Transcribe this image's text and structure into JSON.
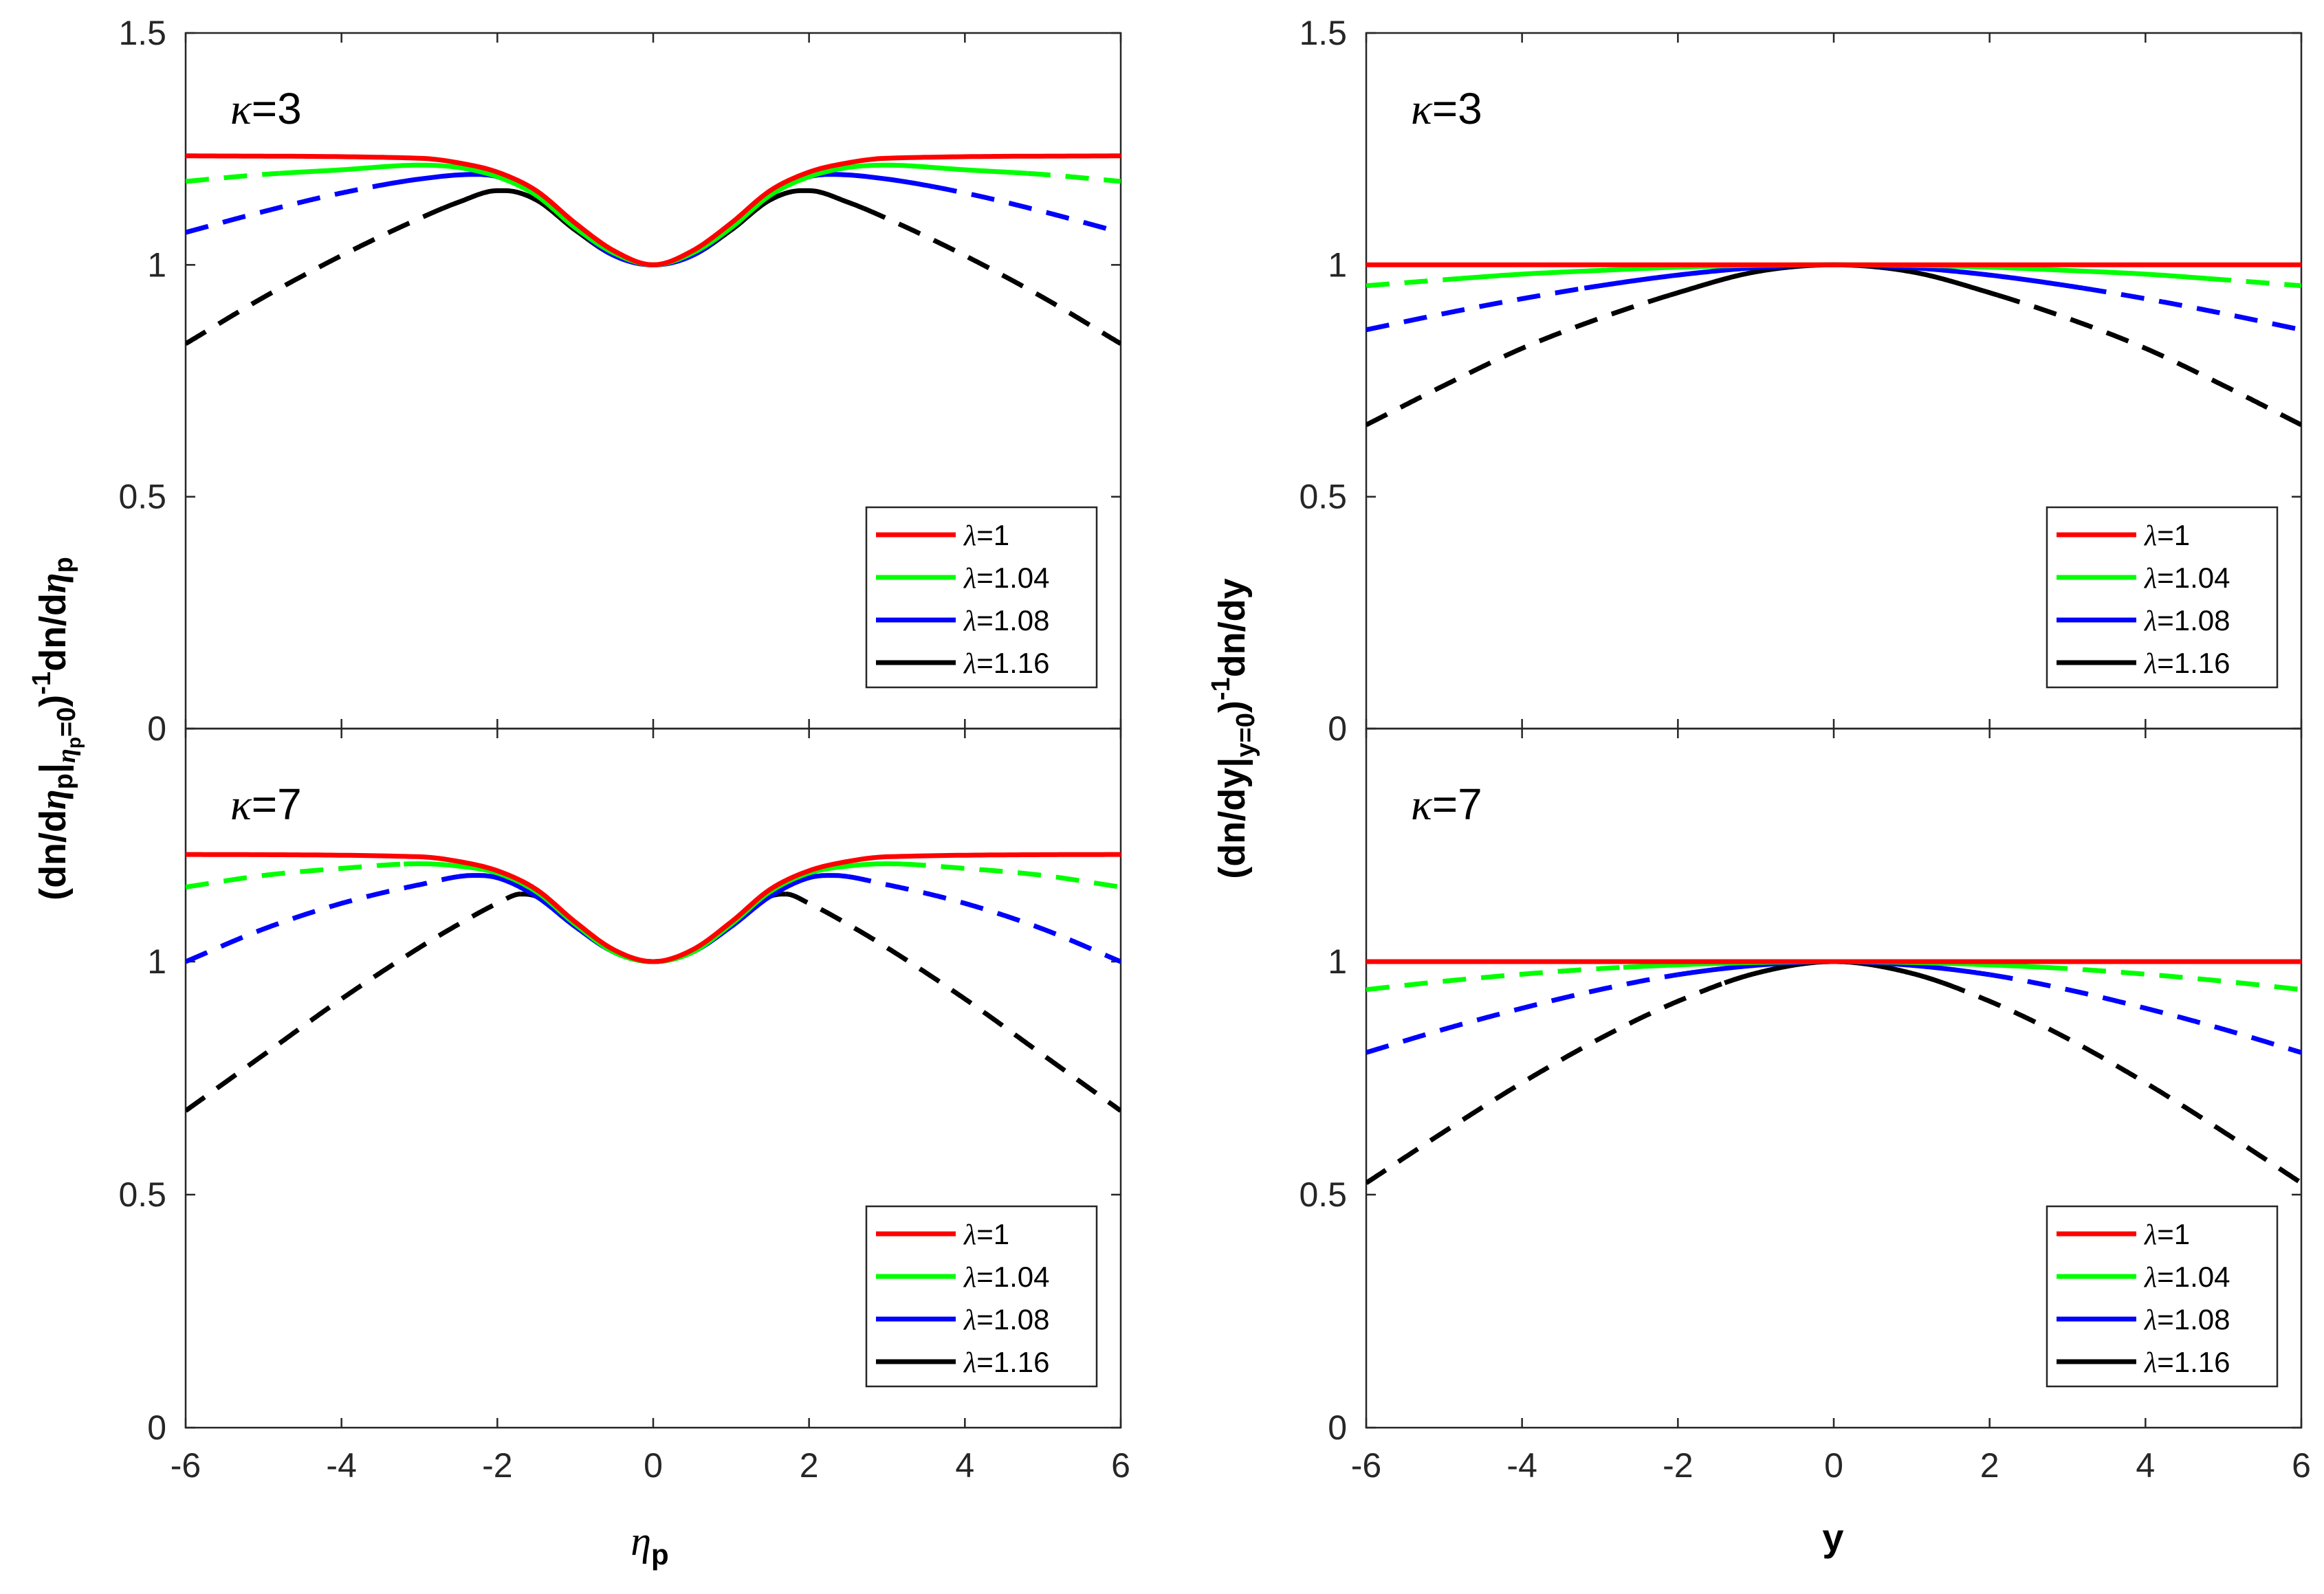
{
  "figure": {
    "left_column": {
      "ylabel": "(dn/dηp|ηp=0)-1dn/dηp",
      "ylabel_parts": {
        "open": "(dn/d",
        "eta": "η",
        "p": "p",
        "bar": "|",
        "sub_eta": "η",
        "sub_p": "p",
        "sub_eq": "=0",
        "close": ")",
        "sup": "-1",
        "rest": "dn/d",
        "eta2": "η",
        "p2": "p"
      },
      "xlabel_symbol": "η",
      "xlabel_sub": "p"
    },
    "right_column": {
      "ylabel": "(dn/dy|y=0)-1dn/dy",
      "ylabel_parts": {
        "open": "(dn/dy|",
        "sub": "y=0",
        "close": ")",
        "sup": "-1",
        "rest": "dn/dy"
      },
      "xlabel": "y"
    }
  },
  "colors": {
    "lambda_1": "#ff0000",
    "lambda_1.04": "#00ff00",
    "lambda_1.08": "#0000ff",
    "lambda_1.16": "#000000"
  },
  "chart_data": [
    {
      "id": "top-left",
      "type": "line",
      "annotation": "κ=3",
      "xlim": [
        -6,
        6
      ],
      "ylim": [
        0,
        1.5
      ],
      "xticks": [
        "-6",
        "-4",
        "-2",
        "0",
        "2",
        "4",
        "6"
      ],
      "yticks": [
        "0",
        "0.5",
        "1",
        "1.5"
      ],
      "legend_position": "bottom-right",
      "series": [
        {
          "name": "λ=1",
          "color": "#ff0000",
          "solid_range": [
            -6,
            6
          ],
          "x": [
            -6,
            -3,
            -2.5,
            -2,
            -1.5,
            -1,
            -0.5,
            0,
            0.5,
            1,
            1.5,
            2,
            2.5,
            3,
            6
          ],
          "y": [
            1.235,
            1.23,
            1.22,
            1.2,
            1.16,
            1.09,
            1.03,
            1.0,
            1.03,
            1.09,
            1.16,
            1.2,
            1.22,
            1.23,
            1.235
          ]
        },
        {
          "name": "λ=1.04",
          "color": "#00ff00",
          "solid_range": [
            -4.8,
            4.8
          ],
          "x": [
            -6,
            -5,
            -4,
            -3,
            -2.5,
            -2,
            -1.5,
            -1,
            -0.5,
            0,
            0.5,
            1,
            1.5,
            2,
            2.5,
            3,
            4,
            5,
            6
          ],
          "y": [
            1.18,
            1.195,
            1.205,
            1.215,
            1.21,
            1.19,
            1.15,
            1.08,
            1.025,
            1.0,
            1.025,
            1.08,
            1.15,
            1.19,
            1.21,
            1.215,
            1.205,
            1.195,
            1.18
          ]
        },
        {
          "name": "λ=1.08",
          "color": "#0000ff",
          "solid_range": [
            -3.6,
            3.6
          ],
          "x": [
            -6,
            -5,
            -4,
            -3,
            -2.3,
            -2,
            -1.5,
            -1,
            -0.5,
            0,
            0.5,
            1,
            1.5,
            2,
            2.3,
            3,
            4,
            5,
            6
          ],
          "y": [
            1.07,
            1.115,
            1.155,
            1.185,
            1.195,
            1.19,
            1.15,
            1.08,
            1.02,
            1.0,
            1.02,
            1.08,
            1.15,
            1.19,
            1.195,
            1.185,
            1.155,
            1.115,
            1.07
          ]
        },
        {
          "name": "λ=1.16",
          "color": "#000000",
          "solid_range": [
            -2.7,
            2.7
          ],
          "x": [
            -6,
            -5,
            -4,
            -3,
            -2.5,
            -2,
            -1.9,
            -1.5,
            -1,
            -0.5,
            0,
            0.5,
            1,
            1.5,
            1.9,
            2,
            2.5,
            3,
            4,
            5,
            6
          ],
          "y": [
            0.83,
            0.93,
            1.02,
            1.1,
            1.135,
            1.16,
            1.16,
            1.14,
            1.075,
            1.02,
            1.0,
            1.02,
            1.075,
            1.14,
            1.16,
            1.16,
            1.135,
            1.1,
            1.02,
            0.93,
            0.83
          ]
        }
      ]
    },
    {
      "id": "top-right",
      "type": "line",
      "annotation": "κ=3",
      "xlim": [
        -6,
        6
      ],
      "ylim": [
        0,
        1.5
      ],
      "xticks": [
        "-6",
        "-4",
        "-2",
        "0",
        "2",
        "4",
        "6"
      ],
      "yticks": [
        "0",
        "0.5",
        "1",
        "1.5"
      ],
      "legend_position": "bottom-right",
      "series": [
        {
          "name": "λ=1",
          "color": "#ff0000",
          "solid_range": [
            -6,
            6
          ],
          "x": [
            -6,
            6
          ],
          "y": [
            1.0,
            1.0
          ]
        },
        {
          "name": "λ=1.04",
          "color": "#00ff00",
          "solid_range": [
            -4.8,
            4.8
          ],
          "x": [
            -6,
            -5,
            -4,
            -3,
            -2,
            -1,
            0,
            1,
            2,
            3,
            4,
            5,
            6
          ],
          "y": [
            0.955,
            0.968,
            0.98,
            0.988,
            0.995,
            0.999,
            1.0,
            0.999,
            0.995,
            0.988,
            0.98,
            0.968,
            0.955
          ]
        },
        {
          "name": "λ=1.08",
          "color": "#0000ff",
          "solid_range": [
            -3.2,
            3.2
          ],
          "x": [
            -6,
            -5,
            -4,
            -3,
            -2,
            -1,
            0,
            1,
            2,
            3,
            4,
            5,
            6
          ],
          "y": [
            0.86,
            0.895,
            0.927,
            0.955,
            0.978,
            0.994,
            1.0,
            0.994,
            0.978,
            0.955,
            0.927,
            0.895,
            0.86
          ]
        },
        {
          "name": "λ=1.16",
          "color": "#000000",
          "solid_range": [
            -2.1,
            2.1
          ],
          "x": [
            -6,
            -5,
            -4,
            -3,
            -2,
            -1,
            0,
            1,
            2,
            3,
            4,
            5,
            6
          ],
          "y": [
            0.655,
            0.74,
            0.82,
            0.885,
            0.94,
            0.985,
            1.0,
            0.985,
            0.94,
            0.885,
            0.82,
            0.74,
            0.655
          ]
        }
      ]
    },
    {
      "id": "bottom-left",
      "type": "line",
      "annotation": "κ=7",
      "xlim": [
        -6,
        6
      ],
      "ylim": [
        0,
        1.5
      ],
      "xticks": [
        "-6",
        "-4",
        "-2",
        "0",
        "2",
        "4",
        "6"
      ],
      "yticks": [
        "0",
        "0.5",
        "1",
        "1.5"
      ],
      "legend_position": "bottom-right",
      "series": [
        {
          "name": "λ=1",
          "color": "#ff0000",
          "solid_range": [
            -6,
            6
          ],
          "x": [
            -6,
            -3,
            -2.5,
            -2,
            -1.5,
            -1,
            -0.5,
            0,
            0.5,
            1,
            1.5,
            2,
            2.5,
            3,
            6
          ],
          "y": [
            1.23,
            1.225,
            1.215,
            1.195,
            1.155,
            1.085,
            1.025,
            1.0,
            1.025,
            1.085,
            1.155,
            1.195,
            1.215,
            1.225,
            1.23
          ]
        },
        {
          "name": "λ=1.04",
          "color": "#00ff00",
          "solid_range": [
            -3.2,
            3.2
          ],
          "x": [
            -6,
            -5,
            -4,
            -3,
            -2.5,
            -2,
            -1.5,
            -1,
            -0.5,
            0,
            0.5,
            1,
            1.5,
            2,
            2.5,
            3,
            4,
            5,
            6
          ],
          "y": [
            1.16,
            1.185,
            1.2,
            1.21,
            1.205,
            1.19,
            1.15,
            1.08,
            1.02,
            1.0,
            1.02,
            1.08,
            1.15,
            1.19,
            1.205,
            1.21,
            1.2,
            1.185,
            1.16
          ]
        },
        {
          "name": "λ=1.08",
          "color": "#0000ff",
          "solid_range": [
            -2.5,
            2.5
          ],
          "x": [
            -6,
            -5,
            -4,
            -3,
            -2.3,
            -2,
            -1.5,
            -1,
            -0.5,
            0,
            0.5,
            1,
            1.5,
            2,
            2.3,
            3,
            4,
            5,
            6
          ],
          "y": [
            1.0,
            1.07,
            1.125,
            1.165,
            1.185,
            1.18,
            1.14,
            1.075,
            1.02,
            1.0,
            1.02,
            1.075,
            1.14,
            1.18,
            1.185,
            1.165,
            1.125,
            1.07,
            1.0
          ]
        },
        {
          "name": "λ=1.16",
          "color": "#000000",
          "solid_range": [
            -1.7,
            1.7
          ],
          "x": [
            -6,
            -5,
            -4,
            -3,
            -2.5,
            -2,
            -1.7,
            -1.5,
            -1,
            -0.5,
            0,
            0.5,
            1,
            1.5,
            1.7,
            2,
            2.5,
            3,
            4,
            5,
            6
          ],
          "y": [
            0.68,
            0.8,
            0.92,
            1.03,
            1.08,
            1.125,
            1.145,
            1.14,
            1.08,
            1.02,
            1.0,
            1.02,
            1.08,
            1.14,
            1.145,
            1.125,
            1.08,
            1.03,
            0.92,
            0.8,
            0.68
          ]
        }
      ]
    },
    {
      "id": "bottom-right",
      "type": "line",
      "annotation": "κ=7",
      "xlim": [
        -6,
        6
      ],
      "ylim": [
        0,
        1.5
      ],
      "xticks": [
        "-6",
        "-4",
        "-2",
        "0",
        "2",
        "4",
        "6"
      ],
      "yticks": [
        "0",
        "0.5",
        "1",
        "1.5"
      ],
      "legend_position": "bottom-right",
      "series": [
        {
          "name": "λ=1",
          "color": "#ff0000",
          "solid_range": [
            -6,
            6
          ],
          "x": [
            -6,
            6
          ],
          "y": [
            1.0,
            1.0
          ]
        },
        {
          "name": "λ=1.04",
          "color": "#00ff00",
          "solid_range": [
            -2.7,
            2.7
          ],
          "x": [
            -6,
            -5,
            -4,
            -3,
            -2,
            -1,
            0,
            1,
            2,
            3,
            4,
            5,
            6
          ],
          "y": [
            0.94,
            0.958,
            0.973,
            0.985,
            0.993,
            0.998,
            1.0,
            0.998,
            0.993,
            0.985,
            0.973,
            0.958,
            0.94
          ]
        },
        {
          "name": "λ=1.08",
          "color": "#0000ff",
          "solid_range": [
            -2.0,
            2.0
          ],
          "x": [
            -6,
            -5,
            -4,
            -3,
            -2,
            -1,
            0,
            1,
            2,
            3,
            4,
            5,
            6
          ],
          "y": [
            0.805,
            0.855,
            0.9,
            0.94,
            0.972,
            0.992,
            1.0,
            0.992,
            0.972,
            0.94,
            0.9,
            0.855,
            0.805
          ]
        },
        {
          "name": "λ=1.16",
          "color": "#000000",
          "solid_range": [
            -1.4,
            1.4
          ],
          "x": [
            -6,
            -5,
            -4,
            -3,
            -2,
            -1,
            0,
            1,
            2,
            3,
            4,
            5,
            6
          ],
          "y": [
            0.525,
            0.635,
            0.74,
            0.835,
            0.915,
            0.975,
            1.0,
            0.975,
            0.915,
            0.835,
            0.74,
            0.635,
            0.525
          ]
        }
      ]
    }
  ]
}
